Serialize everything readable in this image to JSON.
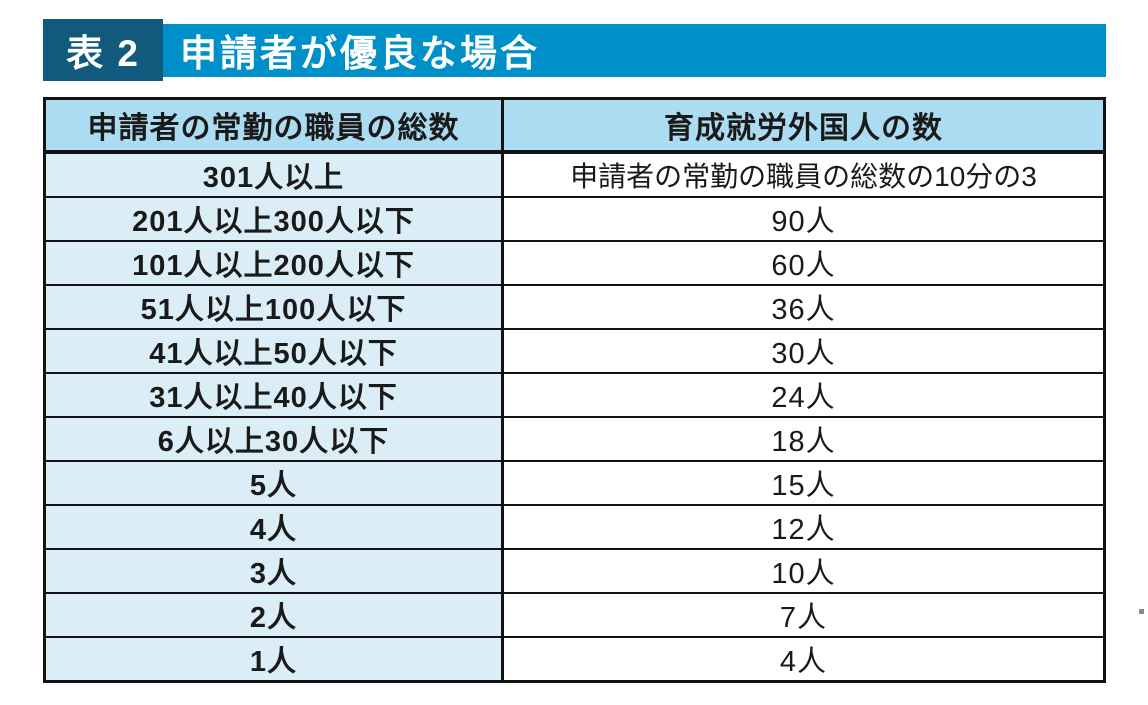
{
  "caption": {
    "tag": "表 2",
    "title": "申請者が優良な場合"
  },
  "table": {
    "headers": [
      "申請者の常勤の職員の総数",
      "育成就労外国人の数"
    ],
    "rows": [
      [
        "301人以上",
        "申請者の常勤の職員の総数の10分の3"
      ],
      [
        "201人以上300人以下",
        "90人"
      ],
      [
        "101人以上200人以下",
        "60人"
      ],
      [
        "51人以上100人以下",
        "36人"
      ],
      [
        "41人以上50人以下",
        "30人"
      ],
      [
        "31人以上40人以下",
        "24人"
      ],
      [
        "6人以上30人以下",
        "18人"
      ],
      [
        "5人",
        "15人"
      ],
      [
        "4人",
        "12人"
      ],
      [
        "3人",
        "10人"
      ],
      [
        "2人",
        "7人"
      ],
      [
        "1人",
        "4人"
      ]
    ]
  },
  "colors": {
    "accent-dark": "#115a7e",
    "accent": "#0090c9",
    "header-cell": "#abdcf2",
    "row-cell": "#dbeef8",
    "border": "#121212",
    "ink": "#1a1a1a",
    "page-bg": "#ffffff",
    "ink-muted": "#8a8a8a"
  }
}
